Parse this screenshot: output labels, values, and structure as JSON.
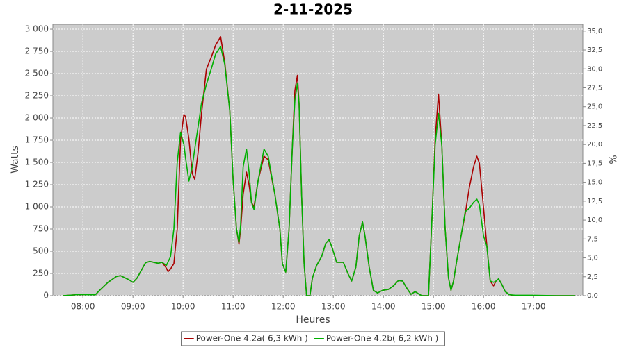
{
  "chart_data": {
    "type": "line",
    "title": "2-11-2025",
    "x_label": "Heures",
    "y_label": "Watts",
    "y2_label": "%",
    "grid": true,
    "legend": "bottom",
    "xlim": [
      "07:24",
      "17:59"
    ],
    "xticks": [
      "08:00",
      "09:00",
      "10:00",
      "11:00",
      "12:00",
      "13:00",
      "14:00",
      "15:00",
      "16:00",
      "17:00"
    ],
    "ylim": [
      0,
      3055
    ],
    "yticks": [
      0,
      250,
      500,
      750,
      {
        "value": 1000,
        "label": "1 000"
      },
      {
        "value": 1250,
        "label": "1 250"
      },
      {
        "value": 1500,
        "label": "1 500"
      },
      {
        "value": 1750,
        "label": "1 750"
      },
      {
        "value": 2000,
        "label": "2 000"
      },
      {
        "value": 2250,
        "label": "2 250"
      },
      {
        "value": 2500,
        "label": "2 500"
      },
      {
        "value": 2750,
        "label": "2 750"
      },
      {
        "value": 3000,
        "label": "3 000"
      }
    ],
    "y2lim": [
      0,
      35.9
    ],
    "y2ticks": [
      {
        "value": 0,
        "label": "0,0"
      },
      {
        "value": 2.5,
        "label": "2,5"
      },
      {
        "value": 5,
        "label": "5,0"
      },
      {
        "value": 7.5,
        "label": "7,5"
      },
      {
        "value": 10,
        "label": "10,0"
      },
      {
        "value": 12.5,
        "label": "12,5"
      },
      {
        "value": 15,
        "label": "15,0"
      },
      {
        "value": 17.5,
        "label": "17,5"
      },
      {
        "value": 20,
        "label": "20,0"
      },
      {
        "value": 22.5,
        "label": "22,5"
      },
      {
        "value": 25,
        "label": "25,0"
      },
      {
        "value": 27.5,
        "label": "27,5"
      },
      {
        "value": 30,
        "label": "30,0"
      },
      {
        "value": 32.5,
        "label": "32,5"
      },
      {
        "value": 35,
        "label": "35,0"
      }
    ],
    "x": [
      "07:36",
      "07:44",
      "07:54",
      "08:05",
      "08:15",
      "08:20",
      "08:30",
      "08:40",
      "08:45",
      "08:55",
      "09:00",
      "09:05",
      "09:15",
      "09:20",
      "09:30",
      "09:35",
      "09:40",
      "09:42",
      "09:45",
      "09:49",
      "09:53",
      "09:57",
      "10:01",
      "10:03",
      "10:07",
      "10:11",
      "10:14",
      "10:18",
      "10:22",
      "10:28",
      "10:34",
      "10:39",
      "10:45",
      "10:50",
      "10:56",
      "11:00",
      "11:04",
      "11:07",
      "11:09",
      "11:12",
      "11:16",
      "11:19",
      "11:22",
      "11:25",
      "11:30",
      "11:37",
      "11:42",
      "11:50",
      "11:56",
      "11:59",
      "12:03",
      "12:07",
      "12:11",
      "12:14",
      "12:17",
      "12:19",
      "12:22",
      "12:25",
      "12:28",
      "12:32",
      "12:35",
      "12:40",
      "12:46",
      "12:51",
      "12:55",
      "12:59",
      "13:04",
      "13:12",
      "13:18",
      "13:22",
      "13:27",
      "13:31",
      "13:35",
      "13:38",
      "13:43",
      "13:48",
      "13:53",
      "13:59",
      "14:06",
      "14:12",
      "14:18",
      "14:23",
      "14:28",
      "14:33",
      "14:38",
      "14:43",
      "14:46",
      "14:54",
      "14:58",
      "15:02",
      "15:06",
      "15:10",
      "15:14",
      "15:18",
      "15:21",
      "15:24",
      "15:28",
      "15:33",
      "15:38",
      "15:43",
      "15:48",
      "15:52",
      "15:55",
      "16:00",
      "16:04",
      "16:08",
      "16:12",
      "16:15",
      "16:18",
      "16:22",
      "16:26",
      "16:31",
      "16:38",
      "16:58",
      "17:28",
      "17:49"
    ],
    "series": [
      {
        "name": "Power-One 4.2a( 6,3 kWh )",
        "color": "#aa0000",
        "values": [
          0,
          5,
          12,
          10,
          10,
          60,
          150,
          215,
          225,
          180,
          150,
          200,
          370,
          385,
          365,
          375,
          310,
          270,
          300,
          360,
          750,
          1750,
          2040,
          2015,
          1765,
          1375,
          1310,
          1610,
          2040,
          2550,
          2690,
          2820,
          2915,
          2625,
          2080,
          1300,
          750,
          580,
          750,
          1140,
          1390,
          1250,
          1050,
          1000,
          1300,
          1570,
          1530,
          1140,
          750,
          360,
          265,
          750,
          1690,
          2310,
          2480,
          2160,
          1140,
          360,
          0,
          0,
          200,
          340,
          440,
          590,
          630,
          530,
          375,
          375,
          240,
          165,
          320,
          670,
          830,
          670,
          320,
          60,
          30,
          60,
          70,
          110,
          170,
          165,
          85,
          15,
          45,
          15,
          0,
          0,
          830,
          1765,
          2270,
          1690,
          750,
          200,
          60,
          165,
          400,
          670,
          920,
          1220,
          1450,
          1570,
          1490,
          985,
          555,
          165,
          110,
          165,
          190,
          125,
          45,
          10,
          0,
          0,
          0,
          0
        ]
      },
      {
        "name": "Power-One 4.2b( 6,2 kWh )",
        "color": "#00b000",
        "values": [
          0,
          5,
          12,
          10,
          10,
          60,
          150,
          215,
          225,
          180,
          150,
          200,
          370,
          385,
          365,
          375,
          340,
          380,
          440,
          750,
          1500,
          1840,
          1700,
          1550,
          1290,
          1450,
          1650,
          1900,
          2160,
          2380,
          2560,
          2720,
          2805,
          2600,
          2080,
          1300,
          750,
          600,
          800,
          1450,
          1650,
          1400,
          1050,
          970,
          1300,
          1650,
          1570,
          1140,
          750,
          360,
          265,
          750,
          1690,
          2200,
          2390,
          2160,
          1140,
          360,
          0,
          0,
          200,
          340,
          440,
          590,
          630,
          530,
          375,
          375,
          240,
          165,
          320,
          670,
          830,
          670,
          320,
          60,
          30,
          60,
          70,
          110,
          170,
          165,
          85,
          15,
          45,
          15,
          0,
          0,
          830,
          1700,
          2050,
          1690,
          750,
          200,
          60,
          165,
          400,
          670,
          945,
          985,
          1050,
          1085,
          1025,
          670,
          555,
          165,
          150,
          165,
          190,
          125,
          45,
          10,
          5,
          5,
          0,
          0
        ]
      }
    ]
  }
}
